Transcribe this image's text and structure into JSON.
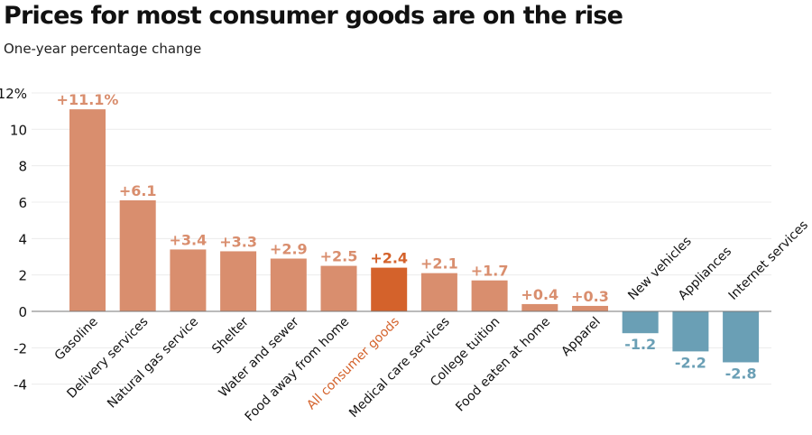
{
  "chart_data": {
    "type": "bar",
    "title": "Prices for most consumer goods are on the rise",
    "subtitle": "One-year percentage change",
    "xlabel": "",
    "ylabel": "",
    "ylim": [
      -4,
      12
    ],
    "yticks": [
      12,
      10,
      8,
      6,
      4,
      2,
      0,
      -2,
      -4
    ],
    "ytick_labels": [
      "12%",
      "10",
      "8",
      "6",
      "4",
      "2",
      "0",
      "-2",
      "-4"
    ],
    "grid": true,
    "categories": [
      "Gasoline",
      "Delivery services",
      "Natural gas service",
      "Shelter",
      "Water and sewer",
      "Food away from home",
      "All consumer goods",
      "Medical care services",
      "College tuition",
      "Food eaten at home",
      "Apparel",
      "New vehicles",
      "Appliances",
      "Internet services"
    ],
    "values": [
      11.1,
      6.1,
      3.4,
      3.3,
      2.9,
      2.5,
      2.4,
      2.1,
      1.7,
      0.4,
      0.3,
      -1.2,
      -2.2,
      -2.8
    ],
    "data_labels": [
      "+11.1%",
      "+6.1",
      "+3.4",
      "+3.3",
      "+2.9",
      "+2.5",
      "+2.4",
      "+2.1",
      "+1.7",
      "+0.4",
      "+0.3",
      "-1.2",
      "-2.2",
      "-2.8"
    ],
    "highlight": "All consumer goods",
    "colors": {
      "positive": "#d98e6e",
      "highlight": "#d4622b",
      "negative": "#6a9fb5",
      "highlight_label": "#d4622b"
    }
  }
}
